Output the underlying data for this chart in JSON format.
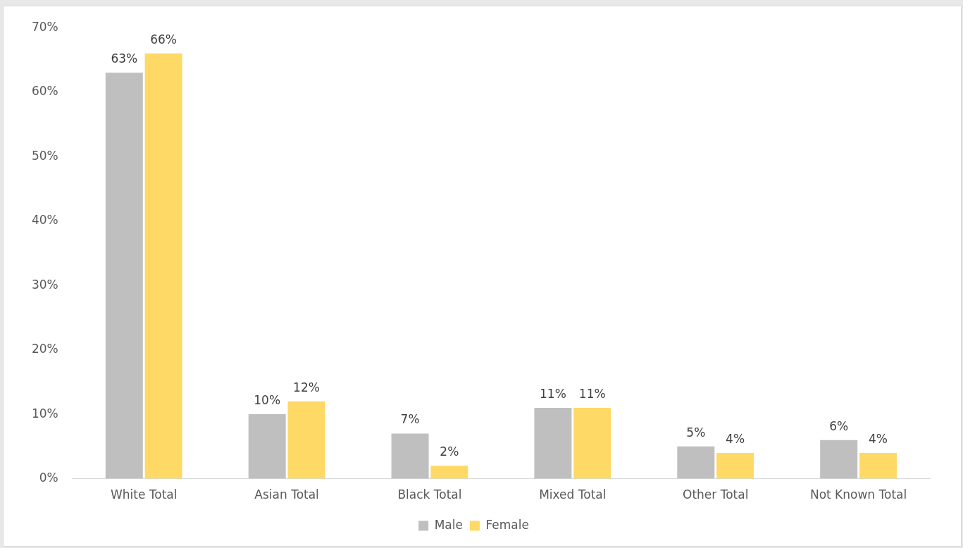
{
  "chart_data": {
    "type": "bar",
    "categories": [
      "White Total",
      "Asian Total",
      "Black Total",
      "Mixed Total",
      "Other Total",
      "Not Known Total"
    ],
    "series": [
      {
        "name": "Male",
        "color": "#bfbfbf",
        "values": [
          63,
          10,
          7,
          11,
          5,
          6
        ],
        "value_labels": [
          "63%",
          "10%",
          "7%",
          "11%",
          "5%",
          "6%"
        ]
      },
      {
        "name": "Female",
        "color": "#ffd966",
        "values": [
          66,
          12,
          2,
          11,
          4,
          4
        ],
        "value_labels": [
          "66%",
          "12%",
          "2%",
          "11%",
          "4%",
          "4%"
        ]
      }
    ],
    "ylim": [
      0,
      70
    ],
    "yticks": [
      {
        "value": 0,
        "label": "0%"
      },
      {
        "value": 10,
        "label": "10%"
      },
      {
        "value": 20,
        "label": "20%"
      },
      {
        "value": 30,
        "label": "30%"
      },
      {
        "value": 40,
        "label": "40%"
      },
      {
        "value": 50,
        "label": "50%"
      },
      {
        "value": 60,
        "label": "60%"
      },
      {
        "value": 70,
        "label": "70%"
      }
    ],
    "grid": false,
    "legend": "bottom"
  }
}
